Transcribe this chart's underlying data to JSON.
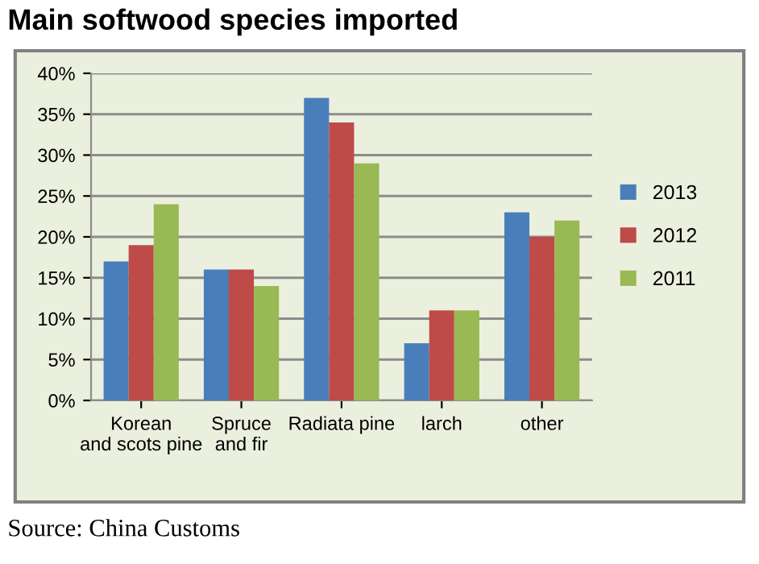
{
  "chart_data": {
    "type": "bar",
    "title": "Main softwood species imported",
    "categories": [
      "Korean and scots pine",
      "Spruce and fir",
      "Radiata pine",
      "larch",
      "other"
    ],
    "series": [
      {
        "name": "2013",
        "color": "#4a7ebb",
        "values": [
          17,
          16,
          37,
          7,
          23
        ]
      },
      {
        "name": "2012",
        "color": "#be4b48",
        "values": [
          19,
          16,
          34,
          11,
          20
        ]
      },
      {
        "name": "2011",
        "color": "#98b954",
        "values": [
          24,
          14,
          29,
          11,
          22
        ]
      }
    ],
    "ylim": [
      0,
      40
    ],
    "yticks": [
      {
        "value": 0,
        "label": "0%"
      },
      {
        "value": 5,
        "label": "5%"
      },
      {
        "value": 10,
        "label": "10%"
      },
      {
        "value": 15,
        "label": "15%"
      },
      {
        "value": 20,
        "label": "20%"
      },
      {
        "value": 25,
        "label": "25%"
      },
      {
        "value": 30,
        "label": "30%"
      },
      {
        "value": 35,
        "label": "35%"
      },
      {
        "value": 40,
        "label": "40%"
      }
    ],
    "grid": "y",
    "legend": "right",
    "annotations": [
      "Source: China Customs"
    ]
  }
}
